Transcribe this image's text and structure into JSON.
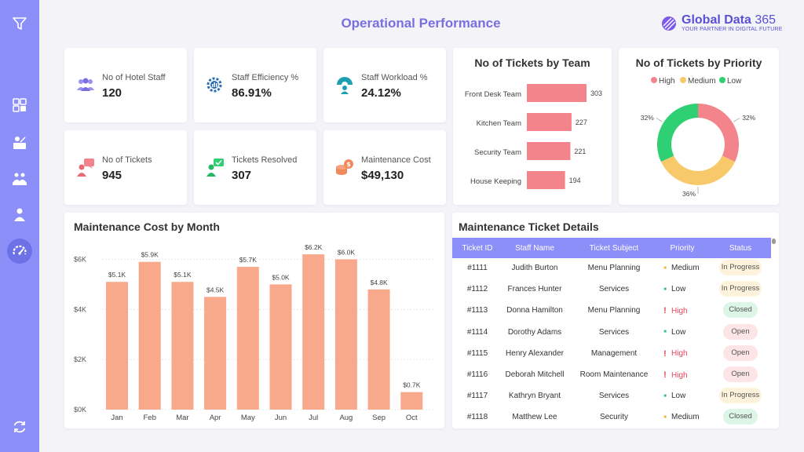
{
  "header": {
    "title": "Operational Performance"
  },
  "brand": {
    "name_bold": "Global Data",
    "name_num": " 365",
    "tagline": "YOUR PARTNER IN DIGITAL FUTURE",
    "color": "#5b4fd6"
  },
  "kpis": [
    {
      "label": "No of Hotel Staff",
      "value": "120",
      "icon": "staff-group-icon"
    },
    {
      "label": "Staff Efficiency %",
      "value": "86.91%",
      "icon": "efficiency-gear-icon"
    },
    {
      "label": "Staff Workload %",
      "value": "24.12%",
      "icon": "workload-gauge-icon"
    },
    {
      "label": "No of Tickets",
      "value": "945",
      "icon": "ticket-chat-icon"
    },
    {
      "label": "Tickets Resolved",
      "value": "307",
      "icon": "resolved-check-icon"
    },
    {
      "label": "Maintenance Cost",
      "value": "$49,130",
      "icon": "coins-icon"
    }
  ],
  "tickets_by_team": {
    "title": "No of Tickets by Team",
    "chart_data": {
      "type": "bar",
      "orientation": "horizontal",
      "categories": [
        "Front Desk Team",
        "Kitchen Team",
        "Security Team",
        "House Keeping"
      ],
      "values": [
        303,
        227,
        221,
        194
      ],
      "labels": [
        "303",
        "227",
        "221",
        "194"
      ],
      "color": "#f4848c"
    }
  },
  "tickets_by_priority": {
    "title": "No of Tickets by Priority",
    "legend": [
      {
        "label": "High",
        "color": "#f4848c"
      },
      {
        "label": "Medium",
        "color": "#f8c96b"
      },
      {
        "label": "Low",
        "color": "#2fcf73"
      }
    ],
    "chart_data": {
      "type": "pie",
      "donut": true,
      "categories": [
        "High",
        "Medium",
        "Low"
      ],
      "values": [
        32,
        36,
        32
      ],
      "labels": [
        "32%",
        "36%",
        "32%"
      ]
    }
  },
  "cost_by_month": {
    "title": "Maintenance Cost by Month",
    "chart_data": {
      "type": "bar",
      "categories": [
        "Jan",
        "Feb",
        "Mar",
        "Apr",
        "May",
        "Jun",
        "Jul",
        "Aug",
        "Sep",
        "Oct"
      ],
      "values": [
        5.1,
        5.9,
        5.1,
        4.5,
        5.7,
        5.0,
        6.2,
        6.0,
        4.8,
        0.7
      ],
      "labels": [
        "$5.1K",
        "$5.9K",
        "$5.1K",
        "$4.5K",
        "$5.7K",
        "$5.0K",
        "$6.2K",
        "$6.0K",
        "$4.8K",
        "$0.7K"
      ],
      "yticks": [
        "$0K",
        "$2K",
        "$4K",
        "$6K"
      ],
      "ytick_values": [
        0,
        2,
        4,
        6
      ],
      "ylim": [
        0,
        6
      ],
      "color": "#f8a98b"
    }
  },
  "ticket_details": {
    "title": "Maintenance Ticket Details",
    "columns": [
      "Ticket ID",
      "Staff Name",
      "Ticket Subject",
      "Priority",
      "Status"
    ],
    "rows": [
      {
        "id": "#1111",
        "name": "Judith Burton",
        "subject": "Menu Planning",
        "priority": "Medium",
        "status": "In Progress"
      },
      {
        "id": "#1112",
        "name": "Frances Hunter",
        "subject": "Services",
        "priority": "Low",
        "status": "In Progress"
      },
      {
        "id": "#1113",
        "name": "Donna Hamilton",
        "subject": "Menu Planning",
        "priority": "High",
        "status": "Closed"
      },
      {
        "id": "#1114",
        "name": "Dorothy Adams",
        "subject": "Services",
        "priority": "Low",
        "status": "Open"
      },
      {
        "id": "#1115",
        "name": "Henry Alexander",
        "subject": "Management",
        "priority": "High",
        "status": "Open"
      },
      {
        "id": "#1116",
        "name": "Deborah Mitchell",
        "subject": "Room Maintenance",
        "priority": "High",
        "status": "Open"
      },
      {
        "id": "#1117",
        "name": "Kathryn Bryant",
        "subject": "Services",
        "priority": "Low",
        "status": "In Progress"
      },
      {
        "id": "#1118",
        "name": "Matthew Lee",
        "subject": "Security",
        "priority": "Medium",
        "status": "Closed"
      }
    ]
  },
  "colors": {
    "accent": "#8b8ff7",
    "title": "#7a6fe0",
    "high": "#e8455c",
    "medium": "#f2b632",
    "low": "#2fbf8a"
  }
}
